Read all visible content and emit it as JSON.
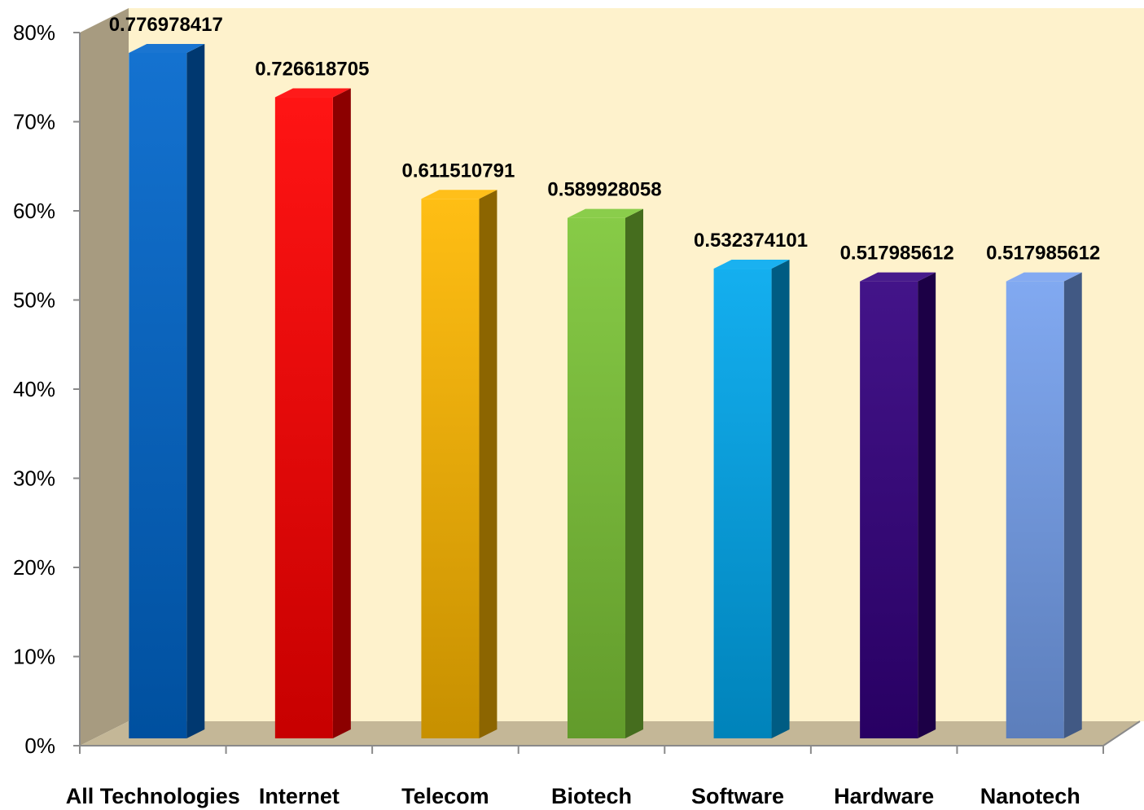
{
  "chart_data": {
    "type": "bar",
    "categories": [
      "All Technologies",
      "Internet",
      "Telecom",
      "Biotech",
      "Software",
      "Hardware",
      "Nanotech"
    ],
    "values": [
      0.776978417,
      0.726618705,
      0.611510791,
      0.589928058,
      0.532374101,
      0.517985612,
      0.517985612
    ],
    "data_labels": [
      "0.776978417",
      "0.726618705",
      "0.611510791",
      "0.589928058",
      "0.532374101",
      "0.517985612",
      "0.517985612"
    ],
    "y_ticks": [
      "0%",
      "10%",
      "20%",
      "30%",
      "40%",
      "50%",
      "60%",
      "70%",
      "80%"
    ],
    "ylim": [
      0,
      0.8
    ],
    "title": "",
    "xlabel": "",
    "ylabel": "",
    "three_d": true,
    "grid": false,
    "legend": "none",
    "colors": {
      "wall_back": "#FEF2CC",
      "wall_side": "#A79B80",
      "floor": "#C4B797",
      "bars": [
        "#0066CC",
        "#FF0000",
        "#FFB800",
        "#7DC737",
        "#00A8EE",
        "#33007F",
        "#76A1F0"
      ]
    }
  }
}
